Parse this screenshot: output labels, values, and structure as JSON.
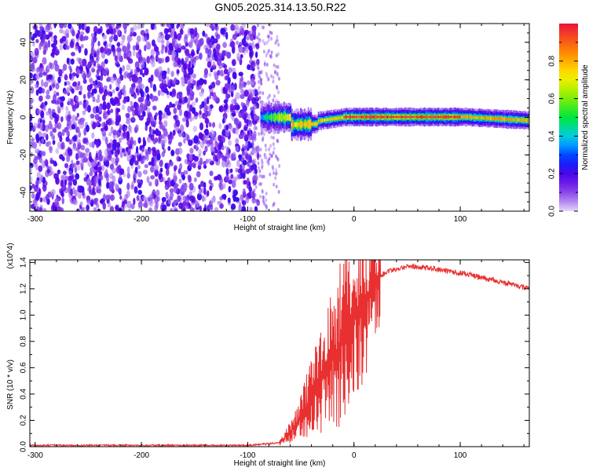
{
  "title": "GN05.2025.314.13.50.R22",
  "chart_data": [
    {
      "type": "heatmap",
      "xlabel": "Height of straight line (km)",
      "ylabel": "Frequency (Hz)",
      "xlim": [
        -305,
        165
      ],
      "ylim": [
        -50,
        50
      ],
      "xticks": [
        -300,
        -200,
        -100,
        0,
        100
      ],
      "yticks": [
        -40,
        -20,
        0,
        20,
        40
      ],
      "colorbar": {
        "label": "Normalized spectral amplitude",
        "range": [
          0.0,
          1.0
        ],
        "ticks": [
          0.0,
          0.2,
          0.4,
          0.6,
          0.8
        ]
      },
      "description_points": [
        {
          "x": -300,
          "freq_center": 0,
          "noise": "dense"
        },
        {
          "x": -90,
          "freq_center": 0,
          "noise": "ends"
        },
        {
          "x": -50,
          "freq_center": -4,
          "amplitude": 0.8
        },
        {
          "x": -20,
          "freq_center": 0,
          "amplitude": 0.95
        },
        {
          "x": 0,
          "freq_center": 0,
          "amplitude": 1.0
        },
        {
          "x": 100,
          "freq_center": 0,
          "amplitude": 0.85
        },
        {
          "x": 165,
          "freq_center": -2,
          "amplitude": 0.7
        }
      ]
    },
    {
      "type": "line",
      "xlabel": "Height of straight line (km)",
      "ylabel": "SNR (10 * v/v)",
      "y_multiplier": "(x10^4)",
      "xlim": [
        -305,
        165
      ],
      "ylim": [
        0,
        1.42
      ],
      "xticks": [
        -300,
        -200,
        -100,
        0,
        100
      ],
      "yticks": [
        0.0,
        0.2,
        0.4,
        0.6,
        0.8,
        1.0,
        1.2,
        1.4
      ],
      "series": [
        {
          "name": "SNR",
          "color": "#e83030",
          "x": [
            -305,
            -200,
            -100,
            -70,
            -55,
            -45,
            -35,
            -25,
            -15,
            -5,
            0,
            10,
            20,
            30,
            50,
            70,
            100,
            130,
            165
          ],
          "y": [
            0.01,
            0.01,
            0.01,
            0.03,
            0.15,
            0.3,
            0.45,
            0.6,
            0.75,
            0.9,
            0.95,
            1.1,
            1.25,
            1.33,
            1.37,
            1.36,
            1.32,
            1.27,
            1.2
          ]
        }
      ]
    }
  ]
}
